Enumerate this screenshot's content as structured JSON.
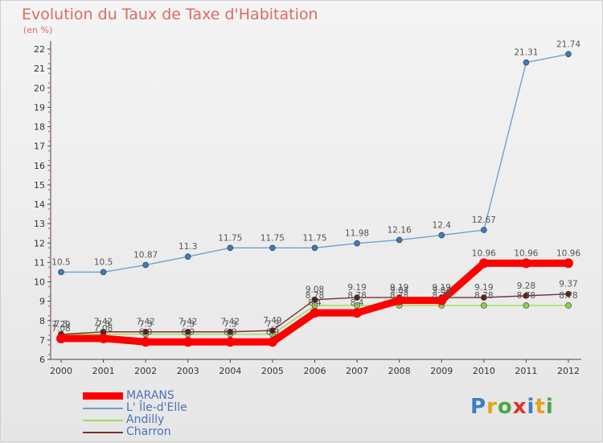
{
  "title": "Evolution du Taux de Taxe d'Habitation",
  "subtitle": "(en %)",
  "logo": {
    "text": "Proxiti",
    "letters": [
      "P",
      "r",
      "o",
      "x",
      "i",
      "t",
      "i"
    ],
    "colors": [
      "#3b7fc4",
      "#e9a11c",
      "#4aa845",
      "#d9362b",
      "#3b7fc4",
      "#e9a11c",
      "#4aa845"
    ]
  },
  "chart_data": {
    "type": "line",
    "title": "Evolution du Taux de Taxe d'Habitation",
    "ylabel": "(en %)",
    "xlabel": "",
    "x": [
      "2000",
      "2001",
      "2002",
      "2003",
      "2004",
      "2005",
      "2006",
      "2007",
      "2008",
      "2009",
      "2010",
      "2011",
      "2012"
    ],
    "ylim": [
      6,
      22
    ],
    "yticks": [
      6,
      7,
      8,
      9,
      10,
      11,
      12,
      13,
      14,
      15,
      16,
      17,
      18,
      19,
      20,
      21,
      22
    ],
    "grid": false,
    "legend_position": "bottom-left",
    "series": [
      {
        "name": "MARANS",
        "color": "#ff0000",
        "values": [
          7.08,
          7.08,
          6.9,
          6.9,
          6.9,
          6.9,
          8.4,
          8.4,
          9.04,
          9.04,
          10.96,
          10.96,
          10.96
        ],
        "labels": [
          "7.08",
          "7.08",
          "6.9",
          "6.9",
          "6.9",
          "6.9",
          "8.4",
          "8.4",
          "9.04",
          "9.04",
          "10.96",
          "10.96",
          "10.96"
        ]
      },
      {
        "name": "L' Île-d'Elle",
        "color": "#6fa0d0",
        "values": [
          10.5,
          10.5,
          10.87,
          11.3,
          11.75,
          11.75,
          11.75,
          11.98,
          12.16,
          12.4,
          12.67,
          21.31,
          21.74
        ],
        "labels": [
          "10.5",
          "10.5",
          "10.87",
          "11.3",
          "11.75",
          "11.75",
          "11.75",
          "11.98",
          "12.16",
          "12.4",
          "12.67",
          "21.31",
          "21.74"
        ]
      },
      {
        "name": "Andilly",
        "color": "#99dd55",
        "values": [
          7.3,
          7.3,
          7.3,
          7.3,
          7.3,
          7.3,
          8.78,
          8.78,
          8.78,
          8.78,
          8.78,
          8.78,
          8.78
        ],
        "labels": [
          "7.3",
          "7.3",
          "7.3",
          "7.3",
          "7.3",
          "7.3",
          "8.78",
          "8.78",
          "8.78",
          "8.78",
          "8.78",
          "8.78",
          "8.78"
        ]
      },
      {
        "name": "Charron",
        "color": "#7a2f2f",
        "values": [
          7.29,
          7.42,
          7.42,
          7.42,
          7.42,
          7.49,
          9.08,
          9.19,
          9.19,
          9.19,
          9.19,
          9.28,
          9.37
        ],
        "labels": [
          "7.29",
          "7.42",
          "7.42",
          "7.42",
          "7.42",
          "7.49",
          "9.08",
          "9.19",
          "9.19",
          "9.19",
          "9.19",
          "9.28",
          "9.37"
        ]
      }
    ]
  }
}
